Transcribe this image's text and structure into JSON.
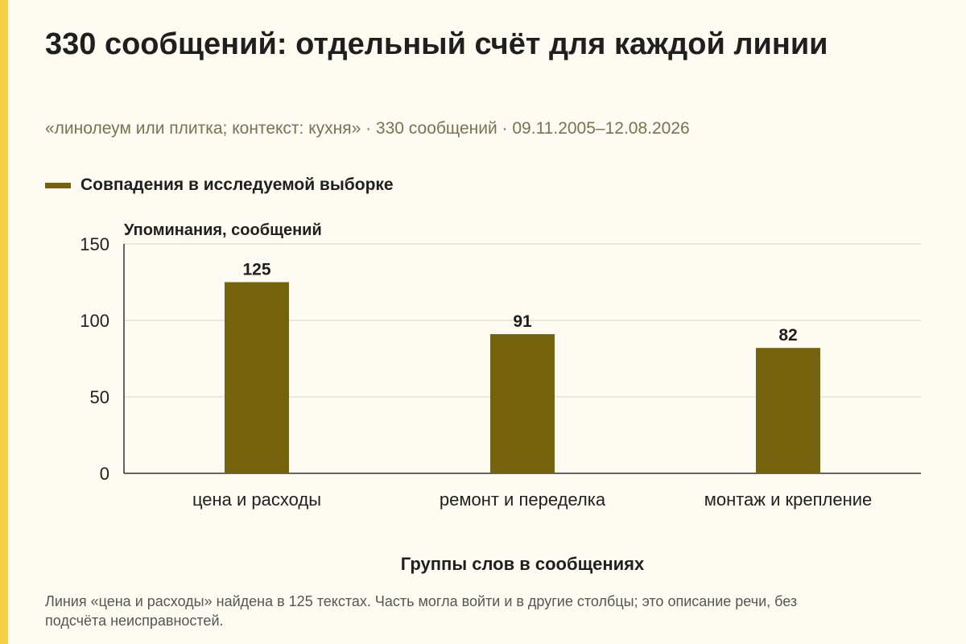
{
  "colors": {
    "accent_bar": "#f7cf47",
    "bar": "#75620c",
    "background": "#fdfbf2",
    "subtitle": "#7a7350"
  },
  "title": "330 сообщений: отдельный счёт для каждой линии",
  "subtitle": "«линолеум или плитка; контекст: кухня» · 330 сообщений · 09.11.2005–12.08.2026",
  "legend": {
    "label": "Совпадения в исследуемой выборке"
  },
  "footnote": "Линия «цена и расходы» найдена в 125 текстах. Часть могла войти и в другие столбцы; это описание речи, без подсчёта неисправностей.",
  "chart_data": {
    "type": "bar",
    "title": "330 сообщений: отдельный счёт для каждой линии",
    "xlabel": "Группы слов в сообщениях",
    "ylabel": "Упоминания, сообщений",
    "categories": [
      "цена и расходы",
      "ремонт и переделка",
      "монтаж и крепление"
    ],
    "series": [
      {
        "name": "Совпадения в исследуемой выборке",
        "values": [
          125,
          91,
          82
        ]
      }
    ],
    "ylim": [
      0,
      150
    ],
    "yticks": [
      0,
      50,
      100,
      150
    ],
    "data_labels": [
      "125",
      "91",
      "82"
    ],
    "grid": true,
    "legend_position": "top-left"
  }
}
